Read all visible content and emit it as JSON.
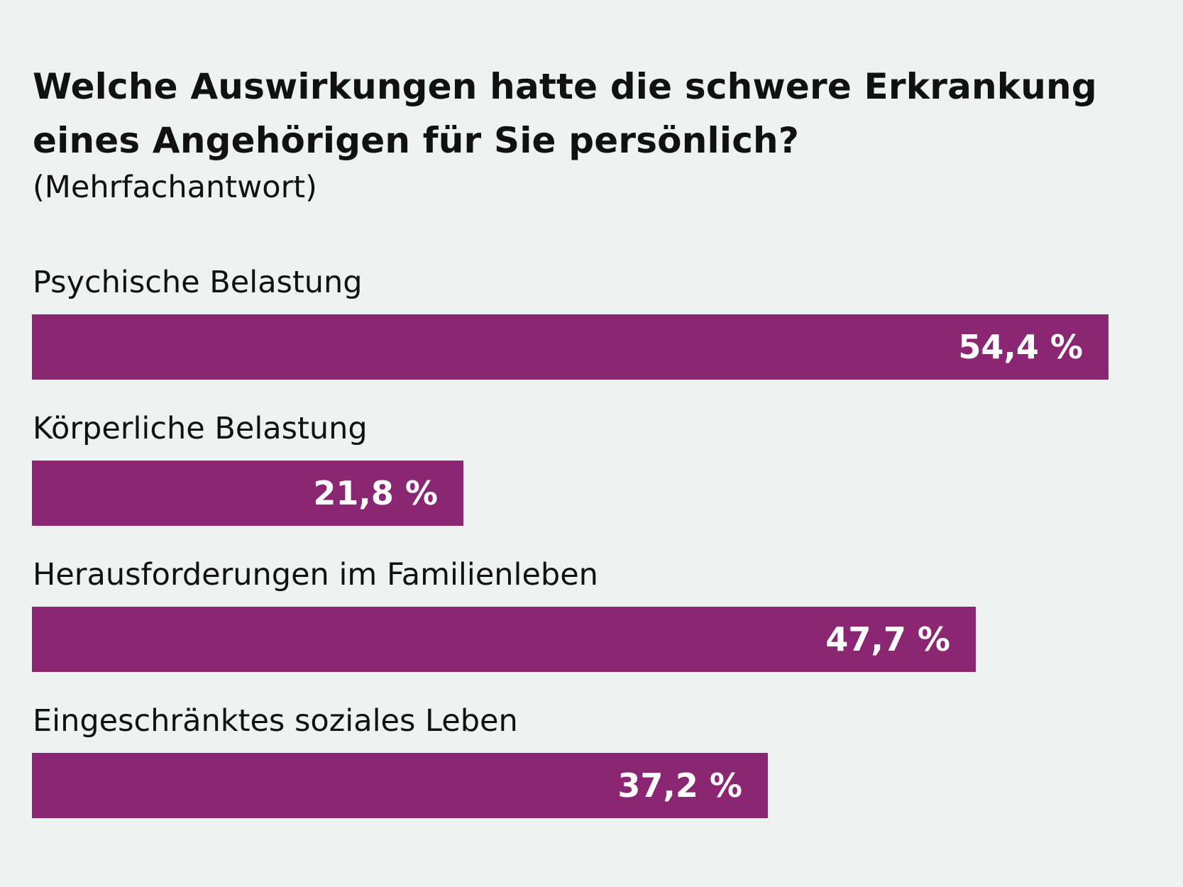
{
  "title": "Welche Auswirkungen hatte die schwere Erkrankung eines Angehörigen für Sie persönlich?",
  "subtitle": "(Mehrfachantwort)",
  "colors": {
    "background": "#eef2f0",
    "bar": "#8a2672",
    "value_text": "#ffffff",
    "text": "#111111"
  },
  "chart_data": {
    "type": "bar",
    "orientation": "horizontal",
    "title": "Welche Auswirkungen hatte die schwere Erkrankung eines Angehörigen für Sie persönlich?",
    "subtitle": "(Mehrfachantwort)",
    "categories": [
      "Psychische Belastung",
      "Körperliche Belastung",
      "Herausforderungen im Familienleben",
      "Eingeschränktes soziales Leben"
    ],
    "values": [
      54.4,
      21.8,
      47.7,
      37.2
    ],
    "value_labels": [
      "54,4 %",
      "21,8 %",
      "47,7 %",
      "37,2 %"
    ],
    "unit": "%",
    "xlabel": "",
    "ylabel": "",
    "grid": false,
    "legend": "none"
  }
}
